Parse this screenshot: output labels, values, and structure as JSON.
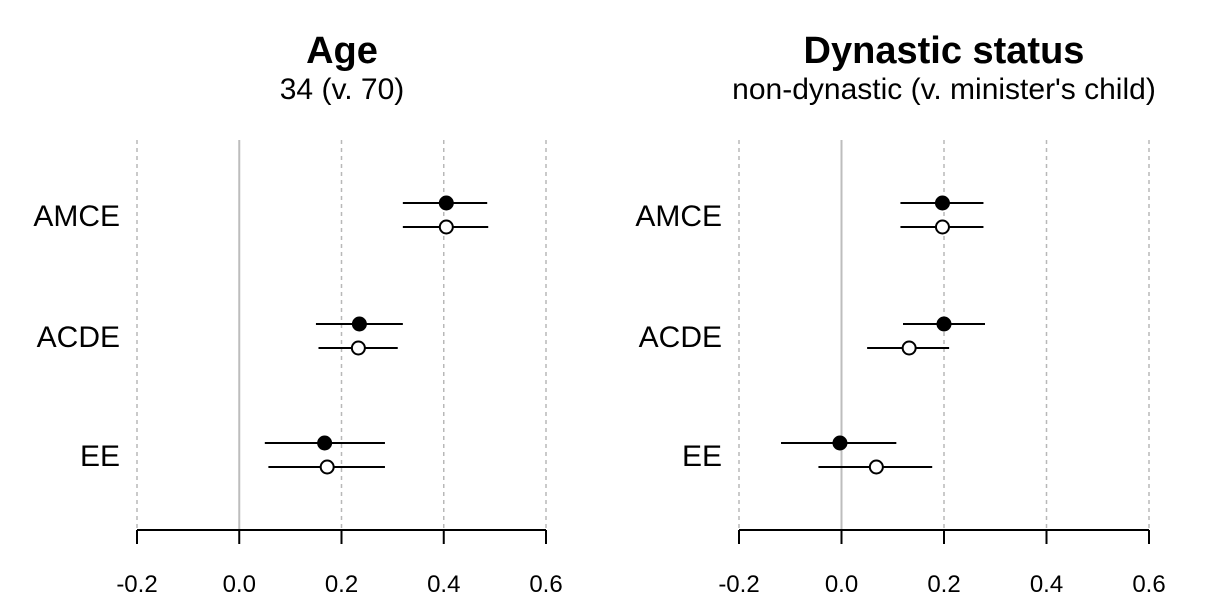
{
  "chart_data": [
    {
      "type": "scatter",
      "title": "Age",
      "subtitle": "34 (v. 70)",
      "rows": [
        "AMCE",
        "ACDE",
        "EE"
      ],
      "xlim": [
        -0.2,
        0.6
      ],
      "xticks": [
        -0.2,
        0.0,
        0.2,
        0.4,
        0.6
      ],
      "xtick_labels": [
        "-0.2",
        "0.0",
        "0.2",
        "0.4",
        "0.6"
      ],
      "reference_line": 0.0,
      "series": [
        {
          "name": "filled",
          "marker": "filled",
          "points": [
            {
              "row": "AMCE",
              "estimate": 0.405,
              "lower": 0.32,
              "upper": 0.485
            },
            {
              "row": "ACDE",
              "estimate": 0.235,
              "lower": 0.15,
              "upper": 0.32
            },
            {
              "row": "EE",
              "estimate": 0.167,
              "lower": 0.05,
              "upper": 0.285
            }
          ]
        },
        {
          "name": "hollow",
          "marker": "hollow",
          "points": [
            {
              "row": "AMCE",
              "estimate": 0.405,
              "lower": 0.32,
              "upper": 0.487
            },
            {
              "row": "ACDE",
              "estimate": 0.233,
              "lower": 0.155,
              "upper": 0.31
            },
            {
              "row": "EE",
              "estimate": 0.172,
              "lower": 0.057,
              "upper": 0.285
            }
          ]
        }
      ]
    },
    {
      "type": "scatter",
      "title": "Dynastic status",
      "subtitle": "non-dynastic (v. minister's child)",
      "rows": [
        "AMCE",
        "ACDE",
        "EE"
      ],
      "xlim": [
        -0.2,
        0.6
      ],
      "xticks": [
        -0.2,
        0.0,
        0.2,
        0.4,
        0.6
      ],
      "xtick_labels": [
        "-0.2",
        "0.0",
        "0.2",
        "0.4",
        "0.6"
      ],
      "reference_line": 0.0,
      "series": [
        {
          "name": "filled",
          "marker": "filled",
          "points": [
            {
              "row": "AMCE",
              "estimate": 0.197,
              "lower": 0.115,
              "upper": 0.277
            },
            {
              "row": "ACDE",
              "estimate": 0.2,
              "lower": 0.12,
              "upper": 0.28
            },
            {
              "row": "EE",
              "estimate": -0.003,
              "lower": -0.118,
              "upper": 0.107
            }
          ]
        },
        {
          "name": "hollow",
          "marker": "hollow",
          "points": [
            {
              "row": "AMCE",
              "estimate": 0.197,
              "lower": 0.115,
              "upper": 0.277
            },
            {
              "row": "ACDE",
              "estimate": 0.132,
              "lower": 0.05,
              "upper": 0.21
            },
            {
              "row": "EE",
              "estimate": 0.068,
              "lower": -0.045,
              "upper": 0.177
            }
          ]
        }
      ]
    }
  ]
}
